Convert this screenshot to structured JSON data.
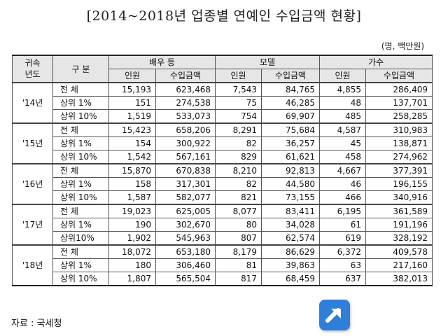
{
  "title": "[2014~2018년 업종별 연예인 수입금액 현황]",
  "unit": "(명, 백만원)",
  "headers": {
    "year_col": "귀속년도",
    "class_col": "구 분",
    "groups": [
      "배우 등",
      "모델",
      "가수"
    ],
    "sub_count": "인원",
    "sub_amount": "수입금액"
  },
  "rows": [
    {
      "year": "'14년",
      "label": "전 체",
      "cells": [
        "15,193",
        "623,468",
        "7,543",
        "84,765",
        "4,855",
        "286,409"
      ]
    },
    {
      "year": "",
      "label": "상위 1%",
      "cells": [
        "151",
        "274,538",
        "75",
        "46,285",
        "48",
        "137,701"
      ]
    },
    {
      "year": "",
      "label": "상위 10%",
      "cells": [
        "1,519",
        "533,073",
        "754",
        "69,907",
        "485",
        "258,285"
      ]
    },
    {
      "year": "'15년",
      "label": "전 체",
      "cells": [
        "15,423",
        "658,206",
        "8,291",
        "75,684",
        "4,587",
        "310,983"
      ]
    },
    {
      "year": "",
      "label": "상위 1%",
      "cells": [
        "154",
        "300,922",
        "82",
        "36,257",
        "45",
        "138,871"
      ]
    },
    {
      "year": "",
      "label": "상위 10%",
      "cells": [
        "1,542",
        "567,161",
        "829",
        "61,621",
        "458",
        "274,962"
      ]
    },
    {
      "year": "'16년",
      "label": "전 체",
      "cells": [
        "15,870",
        "670,838",
        "8,210",
        "92,813",
        "4,667",
        "377,391"
      ]
    },
    {
      "year": "",
      "label": "상위 1%",
      "cells": [
        "158",
        "317,301",
        "82",
        "44,580",
        "46",
        "196,155"
      ]
    },
    {
      "year": "",
      "label": "상위 10%",
      "cells": [
        "1,587",
        "582,077",
        "821",
        "73,155",
        "466",
        "340,916"
      ]
    },
    {
      "year": "'17년",
      "label": "전 체",
      "cells": [
        "19,023",
        "625,005",
        "8,077",
        "83,411",
        "6,195",
        "361,589"
      ]
    },
    {
      "year": "",
      "label": "상위 1%",
      "cells": [
        "190",
        "302,670",
        "80",
        "34,028",
        "61",
        "191,196"
      ]
    },
    {
      "year": "",
      "label": "상위10%",
      "cells": [
        "1,902",
        "545,963",
        "807",
        "62,574",
        "619",
        "328,192"
      ]
    },
    {
      "year": "'18년",
      "label": "전 체",
      "cells": [
        "18,072",
        "653,180",
        "8,179",
        "86,629",
        "6,372",
        "409,578"
      ]
    },
    {
      "year": "",
      "label": "상위 1%",
      "cells": [
        "180",
        "306,460",
        "81",
        "39,863",
        "63",
        "217,160"
      ]
    },
    {
      "year": "",
      "label": "상위 10%",
      "cells": [
        "1,807",
        "565,504",
        "817",
        "68,459",
        "637",
        "382,013"
      ]
    }
  ],
  "source": "자료 : 국세청",
  "icons": {
    "badge": "arrow-up-right-icon",
    "badge_color": "#2f7fd8"
  }
}
